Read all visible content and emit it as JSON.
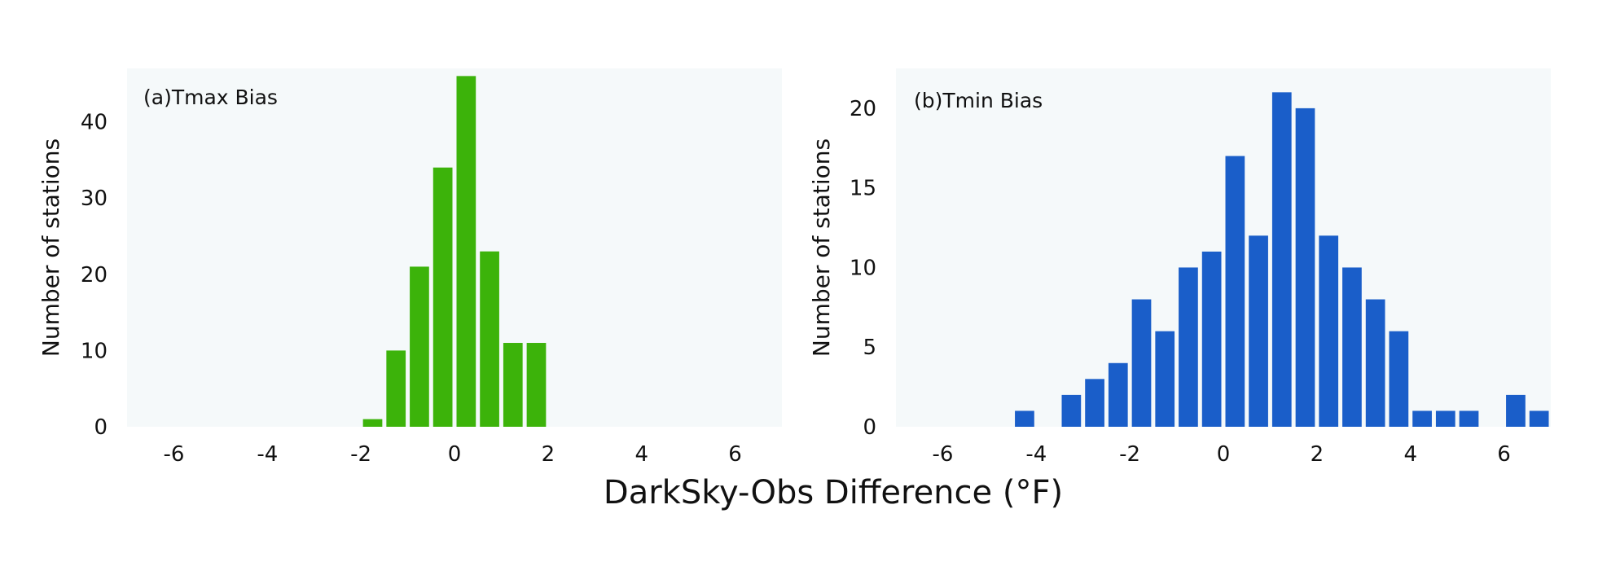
{
  "figure": {
    "xlabel": "DarkSky-Obs Difference (°F)",
    "background": "#ffffff",
    "panel_background": "#f5f9fa"
  },
  "chart_data": [
    {
      "type": "bar",
      "panel_label": "(a)Tmax Bias",
      "xlabel": "DarkSky-Obs Difference (°F)",
      "ylabel": "Number of stations",
      "xlim": [
        -7,
        7
      ],
      "ylim": [
        0,
        47
      ],
      "x_ticks": [
        -6,
        -4,
        -2,
        0,
        2,
        4,
        6
      ],
      "y_ticks": [
        0,
        10,
        20,
        30,
        40
      ],
      "bin_width": 0.5,
      "color": "#3cb30a",
      "x": [
        -1.75,
        -1.25,
        -0.75,
        -0.25,
        0.25,
        0.75,
        1.25,
        1.75
      ],
      "values": [
        1,
        10,
        21,
        34,
        46,
        23,
        11,
        11
      ],
      "grid": false
    },
    {
      "type": "bar",
      "panel_label": "(b)Tmin Bias",
      "xlabel": "DarkSky-Obs Difference (°F)",
      "ylabel": "Number of stations",
      "xlim": [
        -7,
        7
      ],
      "ylim": [
        0,
        22.5
      ],
      "x_ticks": [
        -6,
        -4,
        -2,
        0,
        2,
        4,
        6
      ],
      "y_ticks": [
        0,
        5,
        10,
        15,
        20
      ],
      "bin_width": 0.5,
      "color": "#1a5ec9",
      "x": [
        -4.25,
        -3.25,
        -2.75,
        -2.25,
        -1.75,
        -1.25,
        -0.75,
        -0.25,
        0.25,
        0.75,
        1.25,
        1.75,
        2.25,
        2.75,
        3.25,
        3.75,
        4.25,
        4.75,
        5.25,
        6.25,
        6.75
      ],
      "values": [
        1,
        2,
        3,
        4,
        8,
        6,
        10,
        11,
        17,
        12,
        21,
        20,
        12,
        10,
        8,
        6,
        1,
        1,
        1,
        2,
        1
      ],
      "grid": false
    }
  ]
}
